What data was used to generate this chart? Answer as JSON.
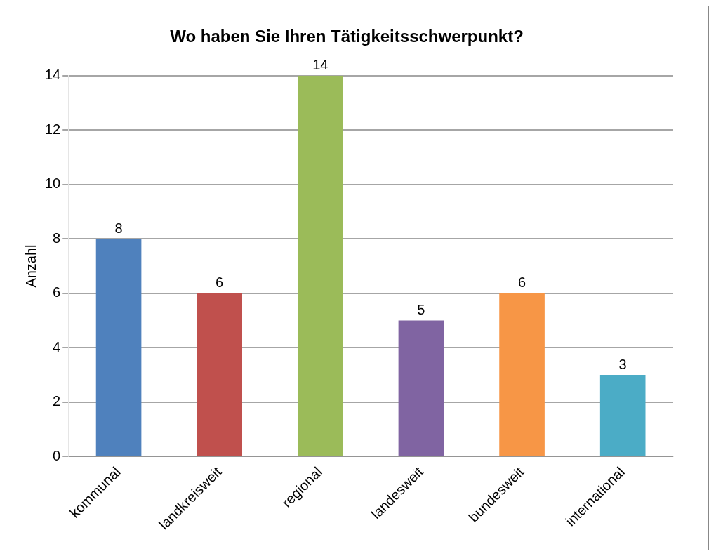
{
  "chart_data": {
    "type": "bar",
    "title": "Wo haben Sie Ihren Tätigkeitsschwerpunkt?",
    "ylabel": "Anzahl",
    "categories": [
      "kommunal",
      "landkreisweit",
      "regional",
      "landesweit",
      "bundesweit",
      "international"
    ],
    "values": [
      8,
      6,
      14,
      5,
      6,
      3
    ],
    "colors": [
      "#4f81bd",
      "#c0504d",
      "#9bbb59",
      "#8064a2",
      "#f79646",
      "#4bacc6"
    ],
    "ylim": [
      0,
      14
    ],
    "yticks": [
      0,
      2,
      4,
      6,
      8,
      10,
      12,
      14
    ],
    "grid": "y",
    "data_labels": true,
    "legend": false
  }
}
